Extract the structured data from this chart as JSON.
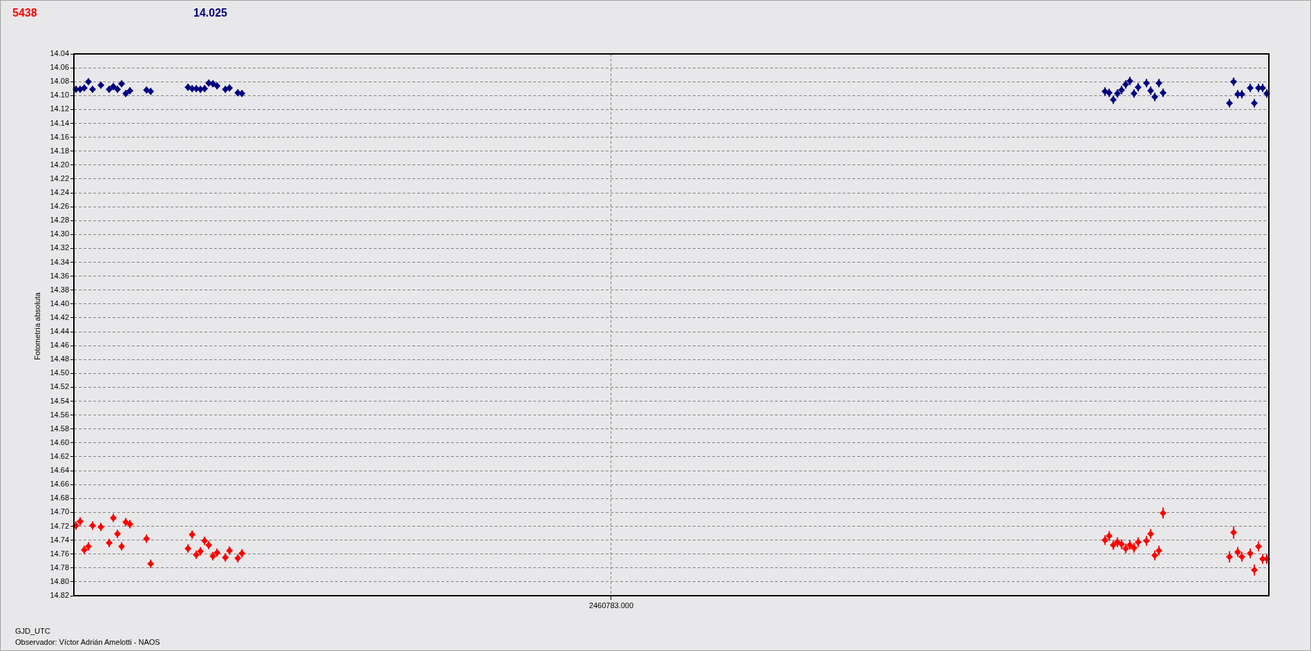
{
  "chart_data": {
    "type": "scatter",
    "ylabel": "Fotometría absoluta",
    "xlabel": "GJD_UTC",
    "annotations": [
      "Observador: Víctor Adrián Amelotti - NAOS"
    ],
    "legend": "top left",
    "grid": true,
    "marker": "diamond",
    "ylim": [
      14.82,
      14.04
    ],
    "yticks": [
      14.04,
      14.06,
      14.08,
      {
        "value": 14.1,
        "label": "14.10"
      },
      14.12,
      14.14,
      14.16,
      14.18,
      {
        "value": 14.2,
        "label": "14.20"
      },
      14.22,
      14.24,
      14.26,
      14.28,
      {
        "value": 14.3,
        "label": "14.30"
      },
      14.32,
      14.34,
      14.36,
      14.38,
      {
        "value": 14.4,
        "label": "14.40"
      },
      14.42,
      14.44,
      14.46,
      14.48,
      {
        "value": 14.5,
        "label": "14.50"
      },
      14.52,
      14.54,
      14.56,
      14.58,
      {
        "value": 14.6,
        "label": "14.60"
      },
      14.62,
      14.64,
      14.66,
      14.68,
      {
        "value": 14.7,
        "label": "14.70"
      },
      14.72,
      14.74,
      14.76,
      14.78,
      {
        "value": 14.8,
        "label": "14.80"
      },
      14.82
    ],
    "categories": [
      null,
      null,
      null,
      null,
      null,
      null,
      null,
      null,
      null,
      null,
      null,
      null,
      null,
      null,
      null,
      null,
      null,
      null,
      null,
      null,
      null,
      null,
      null,
      null,
      null,
      null,
      null,
      null,
      null,
      null,
      null,
      null,
      null,
      null,
      null,
      null,
      null,
      null,
      null,
      null,
      null,
      null,
      null,
      null,
      null,
      null,
      null,
      null,
      null,
      null,
      null,
      null,
      null,
      null,
      null,
      null,
      null,
      null,
      null,
      null,
      null,
      null,
      null,
      null,
      null,
      null,
      null,
      null,
      null,
      null,
      null,
      null,
      null,
      null,
      null,
      null,
      null,
      null,
      null,
      null,
      null,
      null,
      null,
      null,
      null,
      null,
      null,
      null,
      null,
      null,
      null,
      null,
      null,
      null,
      null,
      null,
      null,
      null,
      null,
      null,
      null,
      null,
      null,
      null,
      null,
      null,
      null,
      null,
      null,
      null,
      null,
      null,
      null,
      null,
      null,
      null,
      null,
      null,
      null,
      null,
      null,
      null,
      null,
      null,
      null,
      null,
      null,
      null,
      null,
      "2460783.000",
      null,
      null,
      null,
      null,
      null,
      null,
      null,
      null,
      null,
      null,
      null,
      null,
      null,
      null,
      null,
      null,
      null,
      null,
      null,
      null,
      null,
      null,
      null,
      null,
      null,
      null,
      null,
      null,
      null,
      null,
      null,
      null,
      null,
      null,
      null,
      null,
      null,
      null,
      null,
      null,
      null,
      null,
      null,
      null,
      null,
      null,
      null,
      null,
      null,
      null,
      null,
      null,
      null,
      null,
      null,
      null,
      null,
      null,
      null,
      null,
      null,
      null,
      null,
      null,
      null,
      null,
      null,
      null,
      null,
      null,
      null,
      null,
      null,
      null,
      null,
      null,
      null,
      null,
      null,
      null,
      null,
      null,
      null,
      null,
      null,
      null,
      null,
      null,
      null,
      null,
      null,
      null,
      null,
      null,
      null,
      null,
      null,
      null,
      null,
      null,
      null,
      null,
      null,
      null,
      null,
      null,
      null,
      null,
      null,
      null,
      null,
      null,
      null,
      null,
      null,
      null,
      null,
      null,
      null,
      null,
      null,
      null,
      null,
      null,
      null,
      null,
      null,
      null,
      null,
      null,
      null,
      null,
      null,
      null,
      null,
      null,
      null,
      null,
      null,
      null,
      null,
      null,
      null,
      null,
      null,
      null,
      null,
      null,
      null,
      null,
      null,
      null,
      null,
      null,
      null,
      null,
      null,
      null
    ],
    "series": [
      {
        "name": "5438",
        "color": "#ff0000",
        "values": [
          14.719,
          14.713,
          14.754,
          14.749,
          14.719,
          null,
          14.721,
          null,
          14.744,
          14.708,
          14.731,
          14.749,
          14.714,
          14.717,
          null,
          null,
          null,
          14.738,
          14.774,
          null,
          null,
          null,
          null,
          null,
          null,
          null,
          null,
          14.752,
          14.732,
          14.761,
          14.756,
          14.741,
          14.747,
          14.763,
          14.758,
          null,
          14.765,
          14.755,
          null,
          14.766,
          14.759,
          null,
          null,
          null,
          null,
          null,
          null,
          null,
          null,
          null,
          null,
          null,
          null,
          null,
          null,
          null,
          null,
          null,
          null,
          null,
          null,
          null,
          null,
          null,
          null,
          null,
          null,
          null,
          null,
          null,
          null,
          null,
          null,
          null,
          null,
          null,
          null,
          null,
          null,
          null,
          null,
          null,
          null,
          null,
          null,
          null,
          null,
          null,
          null,
          null,
          null,
          null,
          null,
          null,
          null,
          null,
          null,
          null,
          null,
          null,
          null,
          null,
          null,
          null,
          null,
          null,
          null,
          null,
          null,
          null,
          null,
          null,
          null,
          null,
          null,
          null,
          null,
          null,
          null,
          null,
          null,
          null,
          null,
          null,
          null,
          null,
          null,
          null,
          null,
          null,
          null,
          null,
          null,
          null,
          null,
          null,
          null,
          null,
          null,
          null,
          null,
          null,
          null,
          null,
          null,
          null,
          null,
          null,
          null,
          null,
          null,
          null,
          null,
          null,
          null,
          null,
          null,
          null,
          null,
          null,
          null,
          null,
          null,
          null,
          null,
          null,
          null,
          null,
          null,
          null,
          null,
          null,
          null,
          null,
          null,
          null,
          null,
          null,
          null,
          null,
          null,
          null,
          null,
          null,
          null,
          null,
          null,
          null,
          null,
          null,
          null,
          null,
          null,
          null,
          null,
          null,
          null,
          null,
          null,
          null,
          null,
          null,
          null,
          null,
          null,
          null,
          null,
          null,
          null,
          null,
          null,
          null,
          null,
          null,
          null,
          null,
          null,
          null,
          null,
          null,
          null,
          null,
          null,
          null,
          null,
          null,
          null,
          null,
          null,
          null,
          null,
          null,
          null,
          null,
          null,
          null,
          null,
          null,
          null,
          null,
          null,
          null,
          null,
          null,
          null,
          null,
          null,
          null,
          14.74,
          14.734,
          14.747,
          14.743,
          14.746,
          14.752,
          14.747,
          14.751,
          14.743,
          null,
          14.741,
          14.731,
          14.762,
          14.755,
          14.701,
          null,
          null,
          null,
          null,
          null,
          null,
          null,
          null,
          null,
          null,
          null,
          null,
          null,
          null,
          null,
          14.764,
          14.729,
          14.757,
          14.764,
          null,
          14.759,
          14.783,
          14.749,
          14.767,
          14.767
        ],
        "errors": [
          0.006,
          0.006,
          0.006,
          0.006,
          0.006,
          null,
          0.006,
          null,
          0.006,
          0.006,
          0.006,
          0.006,
          0.006,
          0.006,
          null,
          null,
          null,
          0.006,
          0.006,
          null,
          null,
          null,
          null,
          null,
          null,
          null,
          null,
          0.006,
          0.006,
          0.006,
          0.006,
          0.006,
          0.006,
          0.006,
          0.006,
          null,
          0.006,
          0.006,
          null,
          0.006,
          0.006,
          null,
          null,
          null,
          null,
          null,
          null,
          null,
          null,
          null,
          null,
          null,
          null,
          null,
          null,
          null,
          null,
          null,
          null,
          null,
          null,
          null,
          null,
          null,
          null,
          null,
          null,
          null,
          null,
          null,
          null,
          null,
          null,
          null,
          null,
          null,
          null,
          null,
          null,
          null,
          null,
          null,
          null,
          null,
          null,
          null,
          null,
          null,
          null,
          null,
          null,
          null,
          null,
          null,
          null,
          null,
          null,
          null,
          null,
          null,
          null,
          null,
          null,
          null,
          null,
          null,
          null,
          null,
          null,
          null,
          null,
          null,
          null,
          null,
          null,
          null,
          null,
          null,
          null,
          null,
          null,
          null,
          null,
          null,
          null,
          null,
          null,
          null,
          null,
          null,
          null,
          null,
          null,
          null,
          null,
          null,
          null,
          null,
          null,
          null,
          null,
          null,
          null,
          null,
          null,
          null,
          null,
          null,
          null,
          null,
          null,
          null,
          null,
          null,
          null,
          null,
          null,
          null,
          null,
          null,
          null,
          null,
          null,
          null,
          null,
          null,
          null,
          null,
          null,
          null,
          null,
          null,
          null,
          null,
          null,
          null,
          null,
          null,
          null,
          null,
          null,
          null,
          null,
          null,
          null,
          null,
          null,
          null,
          null,
          null,
          null,
          null,
          null,
          null,
          null,
          null,
          null,
          null,
          null,
          null,
          null,
          null,
          null,
          null,
          null,
          null,
          null,
          null,
          null,
          null,
          null,
          null,
          null,
          null,
          null,
          null,
          null,
          null,
          null,
          null,
          null,
          null,
          null,
          null,
          null,
          null,
          null,
          null,
          null,
          null,
          null,
          null,
          null,
          null,
          null,
          null,
          null,
          null,
          null,
          null,
          null,
          null,
          null,
          null,
          null,
          null,
          null,
          null,
          0.007,
          0.007,
          0.007,
          0.007,
          0.007,
          0.007,
          0.007,
          0.007,
          0.007,
          null,
          0.007,
          0.007,
          0.007,
          0.007,
          0.008,
          null,
          null,
          null,
          null,
          null,
          null,
          null,
          null,
          null,
          null,
          null,
          null,
          null,
          null,
          null,
          0.008,
          0.009,
          0.007,
          0.007,
          null,
          0.007,
          0.008,
          0.007,
          0.007,
          0.007
        ]
      },
      {
        "name": "14.025",
        "color": "#000080",
        "values": [
          14.091,
          14.091,
          14.089,
          14.08,
          14.091,
          null,
          14.085,
          null,
          14.091,
          14.087,
          14.091,
          14.083,
          14.097,
          14.093,
          null,
          null,
          null,
          14.092,
          14.094,
          null,
          null,
          null,
          null,
          null,
          null,
          null,
          null,
          14.088,
          14.09,
          14.09,
          14.091,
          14.09,
          14.082,
          14.083,
          14.086,
          null,
          14.091,
          14.089,
          null,
          14.096,
          14.097,
          null,
          null,
          null,
          null,
          null,
          null,
          null,
          null,
          null,
          null,
          null,
          null,
          null,
          null,
          null,
          null,
          null,
          null,
          null,
          null,
          null,
          null,
          null,
          null,
          null,
          null,
          null,
          null,
          null,
          null,
          null,
          null,
          null,
          null,
          null,
          null,
          null,
          null,
          null,
          null,
          null,
          null,
          null,
          null,
          null,
          null,
          null,
          null,
          null,
          null,
          null,
          null,
          null,
          null,
          null,
          null,
          null,
          null,
          null,
          null,
          null,
          null,
          null,
          null,
          null,
          null,
          null,
          null,
          null,
          null,
          null,
          null,
          null,
          null,
          null,
          null,
          null,
          null,
          null,
          null,
          null,
          null,
          null,
          null,
          null,
          null,
          null,
          null,
          null,
          null,
          null,
          null,
          null,
          null,
          null,
          null,
          null,
          null,
          null,
          null,
          null,
          null,
          null,
          null,
          null,
          null,
          null,
          null,
          null,
          null,
          null,
          null,
          null,
          null,
          null,
          null,
          null,
          null,
          null,
          null,
          null,
          null,
          null,
          null,
          null,
          null,
          null,
          null,
          null,
          null,
          null,
          null,
          null,
          null,
          null,
          null,
          null,
          null,
          null,
          null,
          null,
          null,
          null,
          null,
          null,
          null,
          null,
          null,
          null,
          null,
          null,
          null,
          null,
          null,
          null,
          null,
          null,
          null,
          null,
          null,
          null,
          null,
          null,
          null,
          null,
          null,
          null,
          null,
          null,
          null,
          null,
          null,
          null,
          null,
          null,
          null,
          null,
          null,
          null,
          null,
          null,
          null,
          null,
          null,
          null,
          null,
          null,
          null,
          null,
          null,
          null,
          null,
          null,
          null,
          null,
          null,
          null,
          null,
          null,
          null,
          null,
          null,
          null,
          null,
          null,
          null,
          null,
          14.094,
          14.096,
          14.106,
          14.097,
          14.092,
          14.084,
          14.079,
          14.097,
          14.088,
          null,
          14.082,
          14.093,
          14.102,
          14.082,
          14.096,
          null,
          null,
          null,
          null,
          null,
          null,
          null,
          null,
          null,
          null,
          null,
          null,
          null,
          null,
          null,
          14.111,
          14.08,
          14.098,
          14.098,
          null,
          14.089,
          14.111,
          14.089,
          14.089,
          14.097
        ],
        "errors": [
          0.005,
          0.005,
          0.005,
          0.005,
          0.005,
          null,
          0.005,
          null,
          0.005,
          0.005,
          0.005,
          0.005,
          0.005,
          0.005,
          null,
          null,
          null,
          0.005,
          0.005,
          null,
          null,
          null,
          null,
          null,
          null,
          null,
          null,
          0.005,
          0.005,
          0.005,
          0.005,
          0.005,
          0.005,
          0.005,
          0.005,
          null,
          0.005,
          0.005,
          null,
          0.005,
          0.005,
          null,
          null,
          null,
          null,
          null,
          null,
          null,
          null,
          null,
          null,
          null,
          null,
          null,
          null,
          null,
          null,
          null,
          null,
          null,
          null,
          null,
          null,
          null,
          null,
          null,
          null,
          null,
          null,
          null,
          null,
          null,
          null,
          null,
          null,
          null,
          null,
          null,
          null,
          null,
          null,
          null,
          null,
          null,
          null,
          null,
          null,
          null,
          null,
          null,
          null,
          null,
          null,
          null,
          null,
          null,
          null,
          null,
          null,
          null,
          null,
          null,
          null,
          null,
          null,
          null,
          null,
          null,
          null,
          null,
          null,
          null,
          null,
          null,
          null,
          null,
          null,
          null,
          null,
          null,
          null,
          null,
          null,
          null,
          null,
          null,
          null,
          null,
          null,
          null,
          null,
          null,
          null,
          null,
          null,
          null,
          null,
          null,
          null,
          null,
          null,
          null,
          null,
          null,
          null,
          null,
          null,
          null,
          null,
          null,
          null,
          null,
          null,
          null,
          null,
          null,
          null,
          null,
          null,
          null,
          null,
          null,
          null,
          null,
          null,
          null,
          null,
          null,
          null,
          null,
          null,
          null,
          null,
          null,
          null,
          null,
          null,
          null,
          null,
          null,
          null,
          null,
          null,
          null,
          null,
          null,
          null,
          null,
          null,
          null,
          null,
          null,
          null,
          null,
          null,
          null,
          null,
          null,
          null,
          null,
          null,
          null,
          null,
          null,
          null,
          null,
          null,
          null,
          null,
          null,
          null,
          null,
          null,
          null,
          null,
          null,
          null,
          null,
          null,
          null,
          null,
          null,
          null,
          null,
          null,
          null,
          null,
          null,
          null,
          null,
          null,
          null,
          null,
          null,
          null,
          null,
          null,
          null,
          null,
          null,
          null,
          null,
          null,
          null,
          null,
          null,
          null,
          null,
          0.006,
          0.006,
          0.006,
          0.006,
          0.006,
          0.006,
          0.006,
          0.006,
          0.006,
          null,
          0.006,
          0.006,
          0.006,
          0.006,
          0.006,
          null,
          null,
          null,
          null,
          null,
          null,
          null,
          null,
          null,
          null,
          null,
          null,
          null,
          null,
          null,
          0.006,
          0.006,
          0.006,
          0.006,
          null,
          0.006,
          0.006,
          0.006,
          0.006,
          0.006
        ]
      }
    ]
  }
}
